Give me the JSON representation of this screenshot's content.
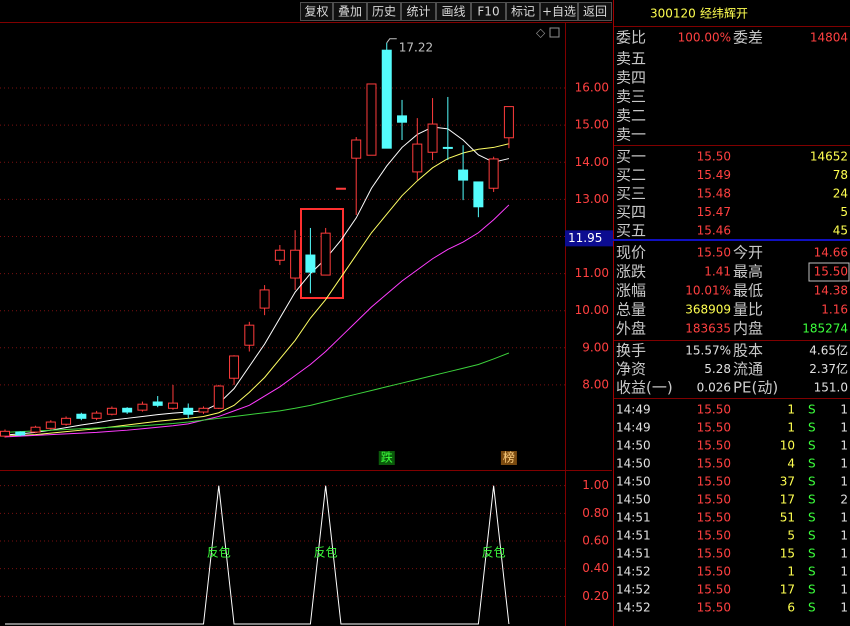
{
  "toolbar": [
    "复权",
    "叠加",
    "历史",
    "统计",
    "画线",
    "F10",
    "标记",
    "+自选",
    "返回"
  ],
  "chart": {
    "ylim": [
      6.3,
      17.78
    ],
    "yticks": [
      {
        "value": 16,
        "label": "16.00"
      },
      {
        "value": 15,
        "label": "15.00"
      },
      {
        "value": 14,
        "label": "14.00"
      },
      {
        "value": 13,
        "label": "13.00"
      },
      {
        "value": 12,
        "label": "12.00"
      },
      {
        "value": 11,
        "label": "11.00"
      },
      {
        "value": 10,
        "label": "10.00"
      },
      {
        "value": 9,
        "label": "9.00"
      },
      {
        "value": 8,
        "label": "8.00"
      }
    ],
    "up_color": "#ff3c3c",
    "down_color": "#54fcfc",
    "open": [
      6.62,
      6.73,
      6.73,
      6.83,
      6.94,
      7.21,
      7.1,
      7.21,
      7.37,
      7.32,
      7.54,
      7.37,
      7.37,
      7.27,
      7.37,
      8.18,
      9.07,
      10.07,
      11.36,
      10.88,
      11.5,
      10.96,
      13.3,
      14.11,
      14.19,
      17.02,
      15.25,
      13.74,
      14.27,
      14.4,
      13.79,
      13.47,
      13.3,
      14.66
    ],
    "high": [
      6.8,
      6.75,
      6.9,
      7.05,
      7.15,
      7.25,
      7.3,
      7.42,
      7.4,
      7.55,
      7.7,
      8.0,
      7.5,
      7.42,
      8.0,
      8.8,
      9.7,
      10.69,
      11.77,
      12.17,
      12.23,
      12.23,
      13.3,
      14.68,
      16.11,
      17.22,
      15.68,
      15.19,
      15.73,
      15.76,
      14.46,
      13.47,
      14.15,
      15.5
    ],
    "low": [
      6.58,
      6.62,
      6.7,
      6.8,
      6.9,
      7.05,
      7.05,
      7.18,
      7.22,
      7.28,
      7.4,
      7.33,
      7.1,
      7.22,
      7.35,
      8.0,
      8.9,
      9.88,
      11.23,
      10.56,
      10.47,
      10.96,
      13.3,
      12.58,
      14.19,
      14.38,
      14.6,
      13.52,
      14.06,
      14.06,
      12.98,
      12.52,
      13.2,
      14.38
    ],
    "close": [
      6.75,
      6.65,
      6.86,
      7.0,
      7.1,
      7.1,
      7.24,
      7.37,
      7.27,
      7.48,
      7.45,
      7.51,
      7.21,
      7.37,
      7.97,
      8.78,
      9.61,
      10.56,
      11.63,
      11.63,
      11.04,
      12.09,
      13.3,
      14.6,
      16.11,
      14.38,
      15.08,
      14.49,
      15.03,
      14.38,
      13.52,
      12.8,
      14.09,
      15.5
    ],
    "series": [
      {
        "color": "#ffffff",
        "values": [
          6.65,
          6.68,
          6.72,
          6.78,
          6.85,
          6.92,
          6.98,
          7.05,
          7.1,
          7.15,
          7.2,
          7.24,
          7.27,
          7.3,
          7.5,
          7.9,
          8.5,
          9.1,
          9.8,
          10.5,
          11.0,
          11.4,
          11.9,
          12.5,
          13.3,
          13.9,
          14.4,
          14.75,
          14.95,
          14.9,
          14.6,
          14.2,
          14.0,
          14.1
        ]
      },
      {
        "color": "#ffff64",
        "values": [
          6.62,
          6.64,
          6.66,
          6.7,
          6.74,
          6.78,
          6.82,
          6.87,
          6.92,
          6.97,
          7.02,
          7.06,
          7.1,
          7.15,
          7.25,
          7.45,
          7.8,
          8.2,
          8.7,
          9.2,
          9.8,
          10.3,
          10.9,
          11.5,
          12.1,
          12.6,
          13.1,
          13.5,
          13.85,
          14.1,
          14.25,
          14.35,
          14.4,
          14.5
        ]
      },
      {
        "color": "#ff3cff",
        "values": [
          6.6,
          6.62,
          6.64,
          6.66,
          6.68,
          6.7,
          6.72,
          6.75,
          6.78,
          6.82,
          6.86,
          6.9,
          6.95,
          7.05,
          7.15,
          7.3,
          7.45,
          7.7,
          7.95,
          8.25,
          8.55,
          8.9,
          9.3,
          9.7,
          10.1,
          10.45,
          10.8,
          11.1,
          11.4,
          11.65,
          11.85,
          12.1,
          12.45,
          12.85
        ]
      },
      {
        "color": "#3cd23c",
        "values": [
          6.72,
          6.74,
          6.76,
          6.78,
          6.8,
          6.82,
          6.84,
          6.86,
          6.88,
          6.9,
          6.93,
          6.96,
          7.0,
          7.05,
          7.1,
          7.15,
          7.2,
          7.25,
          7.3,
          7.37,
          7.45,
          7.55,
          7.65,
          7.75,
          7.85,
          7.95,
          8.05,
          8.15,
          8.25,
          8.35,
          8.45,
          8.55,
          8.7,
          8.86
        ]
      }
    ],
    "peak": 17.22,
    "cursor_price": 11.95,
    "event_labels": [
      null,
      null,
      null,
      null,
      null,
      null,
      null,
      null,
      null,
      null,
      null,
      null,
      null,
      null,
      null,
      null,
      null,
      null,
      null,
      null,
      null,
      null,
      null,
      null,
      null,
      "跌",
      null,
      null,
      null,
      null,
      null,
      null,
      null,
      "榜"
    ],
    "event_colors": [
      null,
      null,
      null,
      null,
      null,
      null,
      null,
      null,
      null,
      null,
      null,
      null,
      null,
      null,
      null,
      null,
      null,
      null,
      null,
      null,
      null,
      null,
      null,
      null,
      null,
      "#0a5a0a",
      null,
      null,
      null,
      null,
      null,
      null,
      null,
      "#7a4a10"
    ]
  },
  "indicator": {
    "ylim": [
      0,
      1.07
    ],
    "yticks": [
      {
        "value": 1,
        "label": "1.00"
      },
      {
        "value": 0.8,
        "label": "0.80"
      },
      {
        "value": 0.6,
        "label": "0.60"
      },
      {
        "value": 0.4,
        "label": "0.40"
      },
      {
        "value": 0.2,
        "label": "0.20"
      }
    ],
    "values": [
      0,
      0,
      0,
      0,
      0,
      0,
      0,
      0,
      0,
      0,
      0,
      0,
      0,
      0,
      1,
      0,
      0,
      0,
      0,
      0,
      0,
      1,
      0,
      0,
      0,
      0,
      0,
      0,
      0,
      0,
      0,
      0,
      1,
      0
    ],
    "signal_label": "反包"
  },
  "quote": {
    "code": "300120",
    "name": "经纬辉开",
    "ratio": [
      {
        "label": "委比",
        "value": "100.00%",
        "color": "#ff4040"
      },
      {
        "label": "委差",
        "value": "14804",
        "color": "#ff4040"
      }
    ],
    "sell": [
      "卖五",
      "卖四",
      "卖三",
      "卖二",
      "卖一"
    ],
    "buy": [
      {
        "label": "买一",
        "price": "15.50",
        "volume": "14652"
      },
      {
        "label": "买二",
        "price": "15.49",
        "volume": "78"
      },
      {
        "label": "买三",
        "price": "15.48",
        "volume": "24"
      },
      {
        "label": "买四",
        "price": "15.47",
        "volume": "5"
      },
      {
        "label": "买五",
        "price": "15.46",
        "volume": "45"
      }
    ],
    "stats": [
      [
        {
          "label": "现价",
          "value": "15.50",
          "color": "#ff4040"
        },
        {
          "label": "今开",
          "value": "14.66",
          "color": "#ff4040"
        }
      ],
      [
        {
          "label": "涨跌",
          "value": "1.41",
          "color": "#ff4040"
        },
        {
          "label": "最高",
          "value": "15.50",
          "color": "#ff4040"
        }
      ],
      [
        {
          "label": "涨幅",
          "value": "10.01%",
          "color": "#ff4040"
        },
        {
          "label": "最低",
          "value": "14.38",
          "color": "#ff4040"
        }
      ],
      [
        {
          "label": "总量",
          "value": "368909",
          "color": "#ffff50"
        },
        {
          "label": "量比",
          "value": "1.16",
          "color": "#ff4040"
        }
      ],
      [
        {
          "label": "外盘",
          "value": "183635",
          "color": "#ff4040"
        },
        {
          "label": "内盘",
          "value": "185274",
          "color": "#3cff3c"
        }
      ]
    ],
    "fundamentals": [
      [
        {
          "label": "换手",
          "value": "15.57%"
        },
        {
          "label": "股本",
          "value": "4.65亿"
        }
      ],
      [
        {
          "label": "净资",
          "value": "5.28"
        },
        {
          "label": "流通",
          "value": "2.37亿"
        }
      ],
      [
        {
          "label": "收益(一)",
          "value": "0.026"
        },
        {
          "label": "PE(动)",
          "value": "151.0"
        }
      ]
    ],
    "trades": [
      [
        "14:49",
        "15.50",
        "1",
        "S",
        "1"
      ],
      [
        "14:49",
        "15.50",
        "1",
        "S",
        "1"
      ],
      [
        "14:50",
        "15.50",
        "10",
        "S",
        "1"
      ],
      [
        "14:50",
        "15.50",
        "4",
        "S",
        "1"
      ],
      [
        "14:50",
        "15.50",
        "37",
        "S",
        "1"
      ],
      [
        "14:50",
        "15.50",
        "17",
        "S",
        "2"
      ],
      [
        "14:51",
        "15.50",
        "51",
        "S",
        "1"
      ],
      [
        "14:51",
        "15.50",
        "5",
        "S",
        "1"
      ],
      [
        "14:51",
        "15.50",
        "15",
        "S",
        "1"
      ],
      [
        "14:52",
        "15.50",
        "1",
        "S",
        "1"
      ],
      [
        "14:52",
        "15.50",
        "17",
        "S",
        "1"
      ],
      [
        "14:52",
        "15.50",
        "6",
        "S",
        "1"
      ]
    ]
  }
}
